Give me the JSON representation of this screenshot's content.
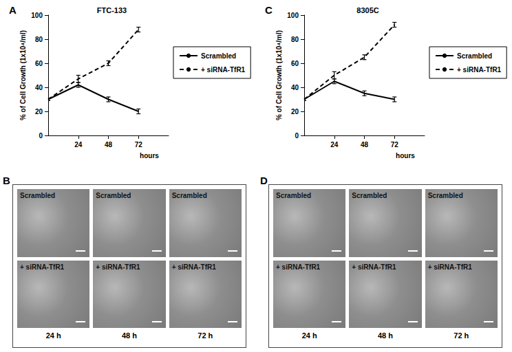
{
  "chart_data": [
    {
      "panel": "A",
      "type": "line",
      "title": "FTC-133",
      "x_label": "hours",
      "y_label": "% of Cell Growth (1x10⁴/ml)",
      "x": [
        0,
        24,
        48,
        72
      ],
      "xlim": [
        0,
        96
      ],
      "xticks": [
        24,
        48,
        72
      ],
      "ylim": [
        0,
        100
      ],
      "yticks": [
        0,
        20,
        40,
        60,
        80,
        100
      ],
      "grid": false,
      "legend": "right",
      "series": [
        {
          "name": "Scrambled",
          "color": "#000000",
          "line_style": "solid",
          "marker": "none",
          "values": [
            30,
            42,
            30,
            20
          ],
          "errors": [
            1,
            2,
            2,
            2
          ]
        },
        {
          "name": "+ siRNA-TfR1",
          "color": "#000000",
          "line_style": "dashed",
          "marker": "none",
          "values": [
            30,
            47,
            60,
            88
          ],
          "errors": [
            1,
            3,
            2,
            2
          ]
        }
      ]
    },
    {
      "panel": "C",
      "type": "line",
      "title": "8305C",
      "x_label": "hours",
      "y_label": "% of Cell Growth (1x10⁴/ml)",
      "x": [
        0,
        24,
        48,
        72
      ],
      "xlim": [
        0,
        96
      ],
      "xticks": [
        24,
        48,
        72
      ],
      "ylim": [
        0,
        100
      ],
      "yticks": [
        0,
        20,
        40,
        60,
        80,
        100
      ],
      "grid": false,
      "legend": "right",
      "series": [
        {
          "name": "Scrambled",
          "color": "#000000",
          "line_style": "solid",
          "marker": "none",
          "values": [
            30,
            45,
            35,
            30
          ],
          "errors": [
            1,
            2,
            2,
            2
          ]
        },
        {
          "name": "+ siRNA-TfR1",
          "color": "#000000",
          "line_style": "dashed",
          "marker": "none",
          "values": [
            30,
            50,
            65,
            92
          ],
          "errors": [
            1,
            3,
            2,
            2
          ]
        }
      ]
    }
  ],
  "image_panels": [
    {
      "panel": "B",
      "rows": [
        "Scrambled",
        "+ siRNA-TfR1"
      ],
      "columns": [
        "24 h",
        "48 h",
        "72 h"
      ]
    },
    {
      "panel": "D",
      "rows": [
        "Scrambled",
        "+ siRNA-TfR1"
      ],
      "columns": [
        "24 h",
        "48 h",
        "72 h"
      ]
    }
  ]
}
